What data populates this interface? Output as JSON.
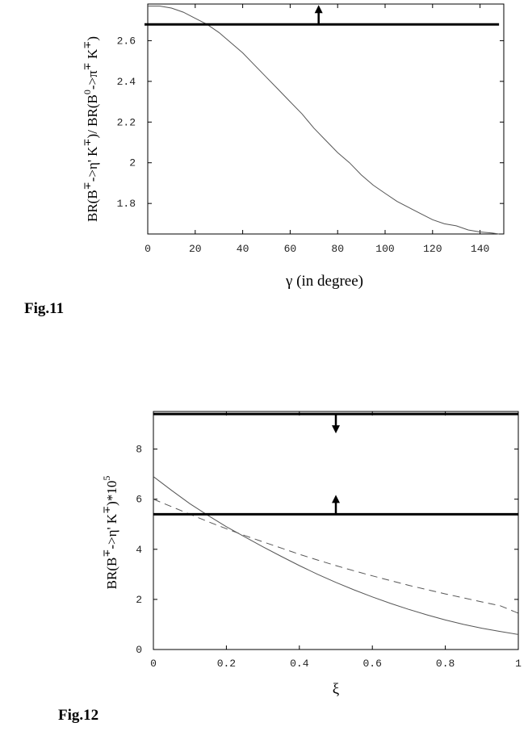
{
  "chart_data": [
    {
      "type": "line",
      "figure_label": "Fig.11",
      "xlabel": "γ (in degree)",
      "ylabel_parts": [
        "BR(B",
        "∓",
        "->η' K",
        "∓",
        ")/ BR(B",
        "0",
        "->π",
        "∓",
        " K",
        "∓",
        ")"
      ],
      "xlim": [
        0,
        150
      ],
      "ylim": [
        1.65,
        2.78
      ],
      "x_ticks": [
        0,
        20,
        40,
        60,
        80,
        100,
        120,
        140
      ],
      "y_ticks": [
        1.8,
        2,
        2.2,
        2.4,
        2.6
      ],
      "y_tick_labels": [
        "1.8",
        "2",
        "2.2",
        "2.4",
        "2.6"
      ],
      "series": [
        {
          "style": "solid-thin",
          "x": [
            0,
            5,
            10,
            15,
            20,
            25,
            30,
            35,
            40,
            45,
            50,
            55,
            60,
            65,
            70,
            75,
            80,
            85,
            90,
            95,
            100,
            105,
            110,
            115,
            120,
            125,
            130,
            135,
            140,
            145,
            148
          ],
          "y": [
            2.77,
            2.77,
            2.76,
            2.74,
            2.71,
            2.68,
            2.64,
            2.59,
            2.54,
            2.48,
            2.42,
            2.36,
            2.3,
            2.24,
            2.17,
            2.11,
            2.05,
            2.0,
            1.94,
            1.89,
            1.85,
            1.81,
            1.78,
            1.75,
            1.72,
            1.7,
            1.69,
            1.67,
            1.66,
            1.655,
            1.65
          ]
        }
      ],
      "bounds": [
        {
          "y": 2.68,
          "x_from": -1.5,
          "x_to": 148,
          "arrow_x": 72,
          "direction": "up"
        }
      ]
    },
    {
      "type": "line",
      "figure_label": "Fig.12",
      "xlabel": "ξ",
      "ylabel_parts": [
        "BR(B",
        "∓",
        "->η' K",
        "∓",
        ")*10",
        "5"
      ],
      "xlim": [
        0,
        1
      ],
      "ylim": [
        0,
        9.5
      ],
      "x_ticks": [
        0,
        0.2,
        0.4,
        0.6,
        0.8,
        1
      ],
      "x_tick_labels": [
        "0",
        "0.2",
        "0.4",
        "0.6",
        "0.8",
        "1"
      ],
      "y_ticks": [
        0,
        2,
        4,
        6,
        8
      ],
      "y_tick_labels": [
        "0",
        "2",
        "4",
        "6",
        "8"
      ],
      "series": [
        {
          "style": "solid-thin",
          "x": [
            0,
            0.05,
            0.1,
            0.15,
            0.2,
            0.25,
            0.3,
            0.35,
            0.4,
            0.45,
            0.5,
            0.55,
            0.6,
            0.65,
            0.7,
            0.75,
            0.8,
            0.85,
            0.9,
            0.95,
            1
          ],
          "y": [
            6.9,
            6.35,
            5.82,
            5.35,
            4.9,
            4.5,
            4.1,
            3.72,
            3.35,
            3.0,
            2.68,
            2.38,
            2.1,
            1.84,
            1.6,
            1.38,
            1.18,
            1.0,
            0.85,
            0.72,
            0.6
          ]
        },
        {
          "style": "dashed-thin",
          "x": [
            0,
            0.05,
            0.1,
            0.15,
            0.2,
            0.25,
            0.3,
            0.35,
            0.4,
            0.45,
            0.5,
            0.55,
            0.6,
            0.65,
            0.7,
            0.75,
            0.8,
            0.85,
            0.9,
            0.95,
            1
          ],
          "y": [
            6.0,
            5.7,
            5.4,
            5.1,
            4.82,
            4.55,
            4.3,
            4.05,
            3.8,
            3.57,
            3.35,
            3.14,
            2.94,
            2.75,
            2.56,
            2.39,
            2.22,
            2.06,
            1.9,
            1.75,
            1.45
          ]
        }
      ],
      "bounds": [
        {
          "y": 9.4,
          "x_from": 0,
          "x_to": 1,
          "arrow_x": 0.5,
          "direction": "down"
        },
        {
          "y": 5.4,
          "x_from": 0,
          "x_to": 1,
          "arrow_x": 0.5,
          "direction": "up"
        }
      ]
    }
  ]
}
